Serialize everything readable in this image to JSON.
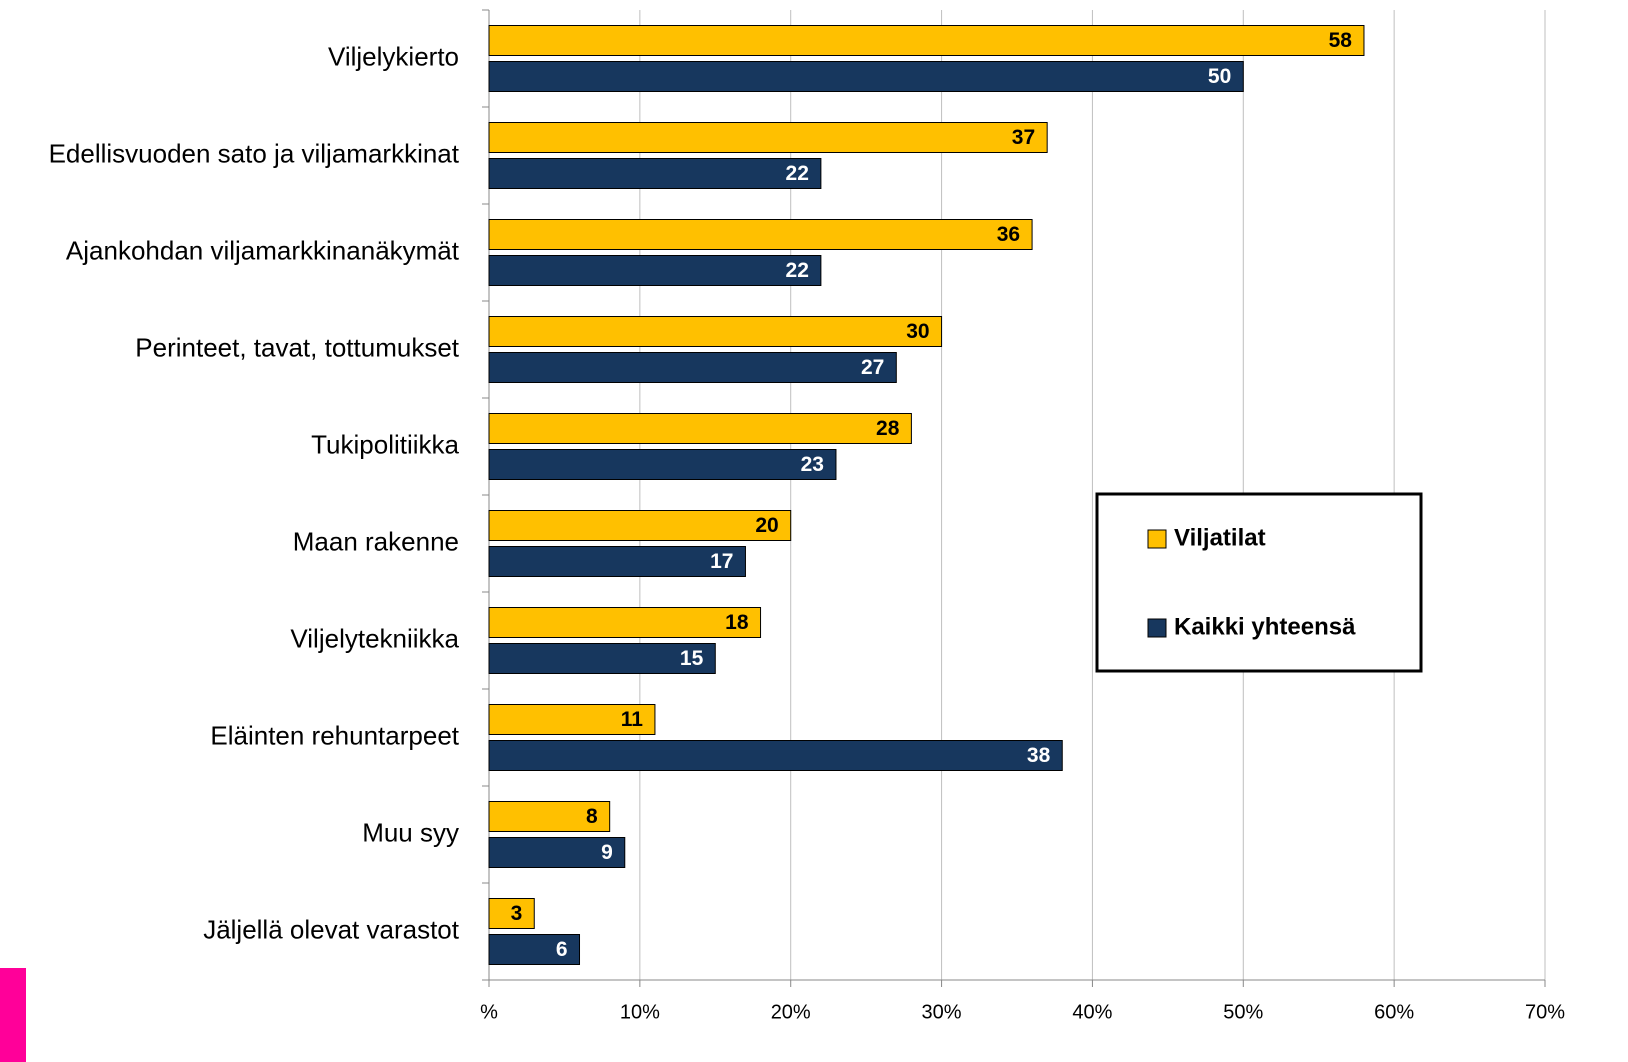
{
  "chart_data": {
    "type": "bar",
    "orientation": "horizontal",
    "categories": [
      "Viljelykierto",
      "Edellisvuoden sato ja viljamarkkinat",
      "Ajankohdan viljamarkkinanäkymät",
      "Perinteet, tavat, tottumukset",
      "Tukipolitiikka",
      "Maan rakenne",
      "Viljelytekniikka",
      "Eläinten rehuntarpeet",
      "Muu syy",
      "Jäljellä olevat varastot"
    ],
    "series": [
      {
        "name": "Viljatilat",
        "color": "#ffc000",
        "values": [
          58,
          37,
          36,
          30,
          28,
          20,
          18,
          11,
          8,
          3
        ]
      },
      {
        "name": "Kaikki yhteensä",
        "color": "#17375e",
        "values": [
          50,
          22,
          22,
          27,
          23,
          17,
          15,
          38,
          9,
          6
        ]
      }
    ],
    "xlim": [
      0,
      70
    ],
    "xticks": [
      {
        "value": 0,
        "label": "%"
      },
      {
        "value": 10,
        "label": "10%"
      },
      {
        "value": 20,
        "label": "20%"
      },
      {
        "value": 30,
        "label": "30%"
      },
      {
        "value": 40,
        "label": "40%"
      },
      {
        "value": 50,
        "label": "50%"
      },
      {
        "value": 60,
        "label": "60%"
      },
      {
        "value": 70,
        "label": "70%"
      }
    ],
    "grid": true
  }
}
